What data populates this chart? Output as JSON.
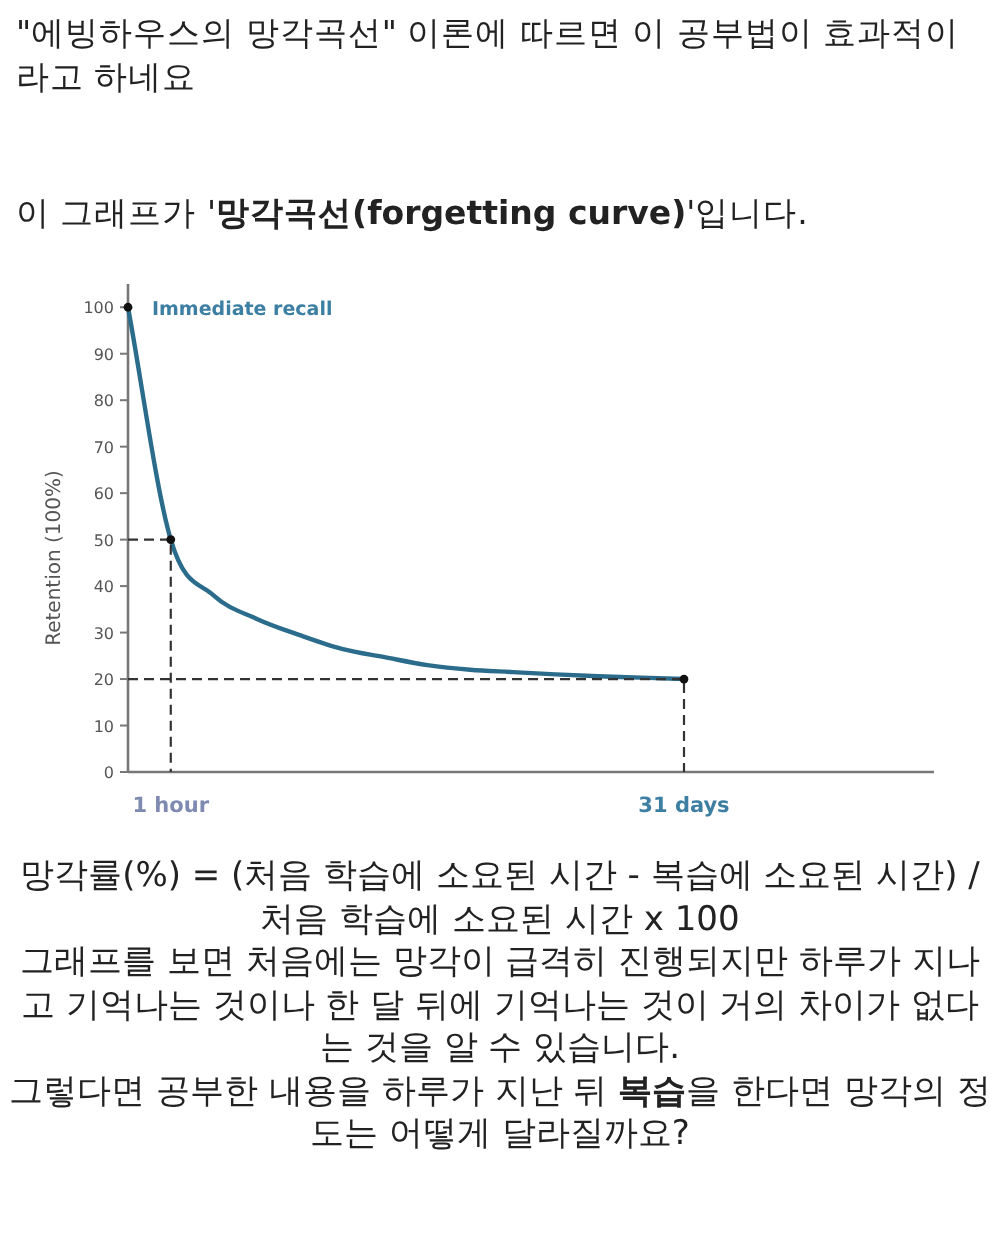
{
  "chart_data": {
    "type": "line",
    "title": "\"에빙하우스의 망각곡선\" 이론에 따르면 이 공부법이 효과적이라고 하네요",
    "subtitle": "이 그래프가 '**망각곡선(forgetting curve)**'입니다.",
    "ylabel": "Retention (100%)",
    "categories": [
      null,
      "1 hour",
      null,
      null,
      null,
      null,
      null,
      null,
      null,
      null,
      null,
      null,
      null,
      "31 days"
    ],
    "series": [
      {
        "color": "#2b6c8c",
        "values": [
          100,
          50,
          38,
          33,
          29.5,
          26.5,
          24.7,
          23,
          22,
          21.5,
          21,
          20.6,
          20.3,
          20
        ]
      },
      {
        "type": "scatter",
        "color": "#111111",
        "marker": "circle",
        "values": [
          100,
          50,
          null,
          null,
          null,
          null,
          null,
          null,
          null,
          null,
          null,
          null,
          null,
          20
        ]
      }
    ],
    "ylim": [
      0,
      105
    ],
    "yticks": [
      0,
      10,
      20,
      30,
      40,
      50,
      60,
      70,
      80,
      90,
      100
    ],
    "annotations": [
      "Immediate recall",
      "망각률(%) = (처음 학습에 소요된 시간 - 복습에 소요된 시간) / 처음 학습에 소요된 시간 x 100",
      "그래프를 보면  처음에는 망각이 급격히 진행되지만 하루가 지나고 기억나는 것이나 한 달 뒤에 기억나는 것이 거의 차이가 없다는 것을 알 수 있습니다.",
      "그렇다면 공부한 내용을 하루가 지난 뒤 **복습**을 한다면 망각의 정도는 어떻게 달라질까요?"
    ]
  }
}
